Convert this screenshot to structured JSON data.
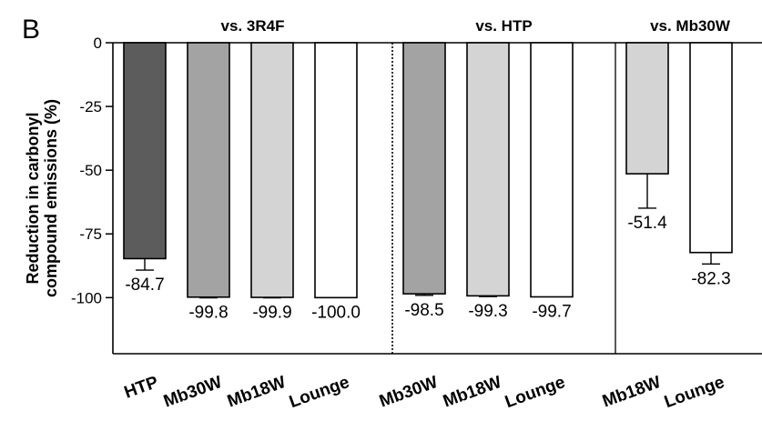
{
  "chart_data": {
    "type": "bar",
    "panel_label": "B",
    "ylabel_lines": [
      "Reduction in carbonyl",
      "compound emissions (%)"
    ],
    "ylim": [
      -122,
      0
    ],
    "yticks": [
      0,
      -25,
      -50,
      -75,
      -100
    ],
    "ytick_labels": [
      "0",
      "-25",
      "-50",
      "-75",
      "-100"
    ],
    "groups": [
      {
        "title": "vs. 3R4F",
        "bars": [
          {
            "category": "HTP",
            "value": -84.7,
            "label": "-84.7",
            "error": 4.5,
            "color": "#5c5c5c"
          },
          {
            "category": "Mb30W",
            "value": -99.8,
            "label": "-99.8",
            "error": 0.3,
            "color": "#a3a3a3"
          },
          {
            "category": "Mb18W",
            "value": -99.9,
            "label": "-99.9",
            "error": 0.2,
            "color": "#d4d4d4"
          },
          {
            "category": "Lounge",
            "value": -100.0,
            "label": "-100.0",
            "error": 0,
            "color": "#ffffff"
          }
        ]
      },
      {
        "title": "vs. HTP",
        "bars": [
          {
            "category": "Mb30W",
            "value": -98.5,
            "label": "-98.5",
            "error": 0.6,
            "color": "#a3a3a3"
          },
          {
            "category": "Mb18W",
            "value": -99.3,
            "label": "-99.3",
            "error": 0.3,
            "color": "#d4d4d4"
          },
          {
            "category": "Lounge",
            "value": -99.7,
            "label": "-99.7",
            "error": 0,
            "color": "#ffffff"
          }
        ]
      },
      {
        "title": "vs. Mb30W",
        "bars": [
          {
            "category": "Mb18W",
            "value": -51.4,
            "label": "-51.4",
            "error": 13.5,
            "color": "#d4d4d4"
          },
          {
            "category": "Lounge",
            "value": -82.3,
            "label": "-82.3",
            "error": 4.5,
            "color": "#ffffff"
          }
        ]
      }
    ]
  }
}
